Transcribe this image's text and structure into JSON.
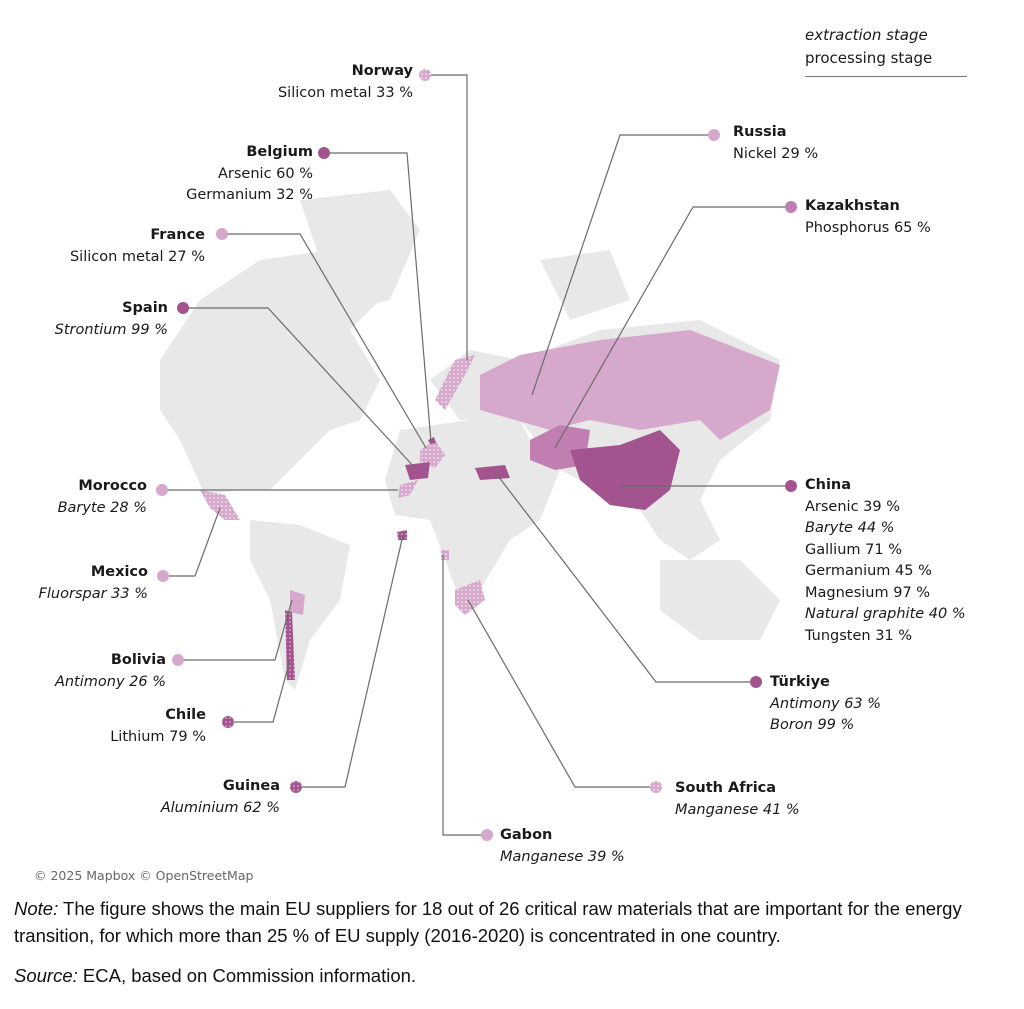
{
  "legend": {
    "extraction": "extraction stage",
    "processing": "processing stage"
  },
  "colors": {
    "dominant": "#a3548f",
    "secondary": "#d6a8cb",
    "land": "#e6e6e6",
    "leader": "#6b6b6b"
  },
  "countries": [
    {
      "name": "Norway",
      "materials": [
        {
          "text": "Silicon metal 33 %",
          "stage": "processing"
        }
      ]
    },
    {
      "name": "Belgium",
      "materials": [
        {
          "text": "Arsenic 60 %",
          "stage": "processing"
        },
        {
          "text": "Germanium 32 %",
          "stage": "processing"
        }
      ]
    },
    {
      "name": "France",
      "materials": [
        {
          "text": "Silicon metal 27 %",
          "stage": "processing"
        }
      ]
    },
    {
      "name": "Spain",
      "materials": [
        {
          "text": "Strontium 99 %",
          "stage": "extraction"
        }
      ]
    },
    {
      "name": "Morocco",
      "materials": [
        {
          "text": "Baryte 28 %",
          "stage": "extraction"
        }
      ]
    },
    {
      "name": "Mexico",
      "materials": [
        {
          "text": "Fluorspar 33 %",
          "stage": "extraction"
        }
      ]
    },
    {
      "name": "Bolivia",
      "materials": [
        {
          "text": "Antimony 26 %",
          "stage": "extraction"
        }
      ]
    },
    {
      "name": "Chile",
      "materials": [
        {
          "text": "Lithium 79 %",
          "stage": "processing"
        }
      ]
    },
    {
      "name": "Guinea",
      "materials": [
        {
          "text": "Aluminium 62 %",
          "stage": "extraction"
        }
      ]
    },
    {
      "name": "Gabon",
      "materials": [
        {
          "text": "Manganese 39 %",
          "stage": "extraction"
        }
      ]
    },
    {
      "name": "South Africa",
      "materials": [
        {
          "text": "Manganese 41 %",
          "stage": "extraction"
        }
      ]
    },
    {
      "name": "Türkiye",
      "materials": [
        {
          "text": "Antimony 63 %",
          "stage": "extraction"
        },
        {
          "text": "Boron 99 %",
          "stage": "extraction"
        }
      ]
    },
    {
      "name": "China",
      "materials": [
        {
          "text": "Arsenic 39 %",
          "stage": "processing"
        },
        {
          "text": "Baryte 44 %",
          "stage": "extraction"
        },
        {
          "text": "Gallium 71 %",
          "stage": "processing"
        },
        {
          "text": "Germanium 45 %",
          "stage": "processing"
        },
        {
          "text": "Magnesium 97 %",
          "stage": "processing"
        },
        {
          "text": "Natural graphite 40 %",
          "stage": "extraction"
        },
        {
          "text": "Tungsten 31 %",
          "stage": "processing"
        }
      ]
    },
    {
      "name": "Kazakhstan",
      "materials": [
        {
          "text": "Phosphorus 65 %",
          "stage": "processing"
        }
      ]
    },
    {
      "name": "Russia",
      "materials": [
        {
          "text": "Nickel 29 %",
          "stage": "processing"
        }
      ]
    }
  ],
  "attribution": "© 2025 Mapbox © OpenStreetMap",
  "note": {
    "label": "Note:",
    "text": " The figure shows the main EU suppliers for 18 out of 26 critical raw materials that are important for the energy transition, for which more than 25 % of EU supply (2016-2020) is concentrated in one country."
  },
  "source": {
    "label": "Source:",
    "text": " ECA, based on Commission information."
  }
}
